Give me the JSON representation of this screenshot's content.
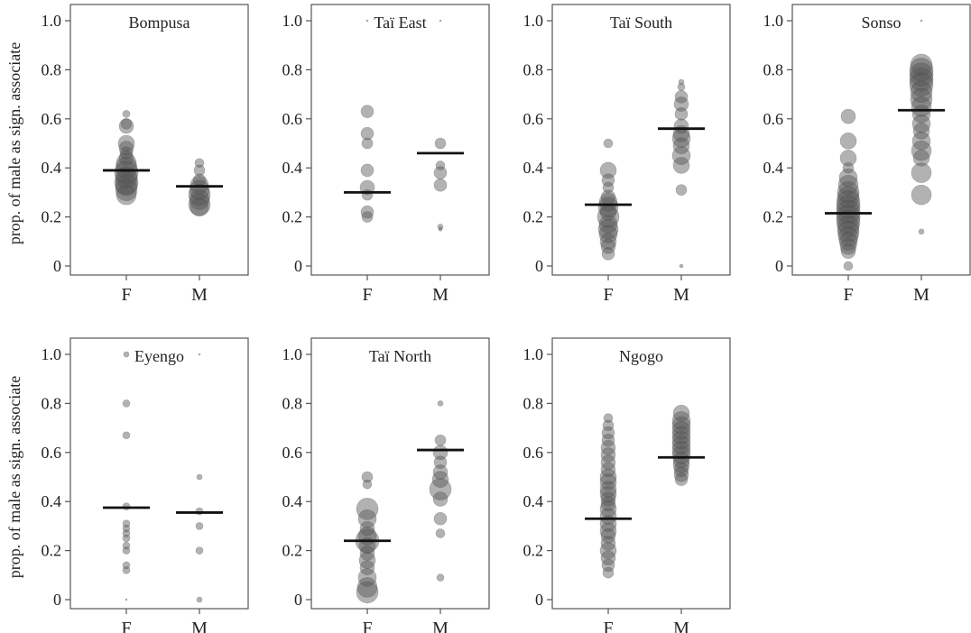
{
  "chart_data": {
    "type": "scatter",
    "ylabel": "prop. of male as sign. associate",
    "ylim": [
      0,
      1
    ],
    "yticks": [
      {
        "value": 0,
        "label": "0"
      },
      {
        "value": 0.2,
        "label": "0.2"
      },
      {
        "value": 0.4,
        "label": "0.4"
      },
      {
        "value": 0.6,
        "label": "0.6"
      },
      {
        "value": 0.8,
        "label": "0.8"
      },
      {
        "value": 1.0,
        "label": "1.0"
      }
    ],
    "categories": [
      "F",
      "M"
    ],
    "colors": {
      "point": "#555555",
      "median": "#111111",
      "frame": "#555555"
    },
    "panels": [
      {
        "title": "Bompusa",
        "median": {
          "F": 0.39,
          "M": 0.325
        },
        "points": {
          "F": [
            [
              0.62,
              4
            ],
            [
              0.58,
              6
            ],
            [
              0.57,
              8
            ],
            [
              0.5,
              9
            ],
            [
              0.48,
              8
            ],
            [
              0.46,
              7
            ],
            [
              0.44,
              8
            ],
            [
              0.42,
              11
            ],
            [
              0.4,
              12
            ],
            [
              0.38,
              13
            ],
            [
              0.36,
              12
            ],
            [
              0.34,
              13
            ],
            [
              0.33,
              12
            ],
            [
              0.31,
              12
            ],
            [
              0.29,
              11
            ]
          ],
          "M": [
            [
              0.42,
              5
            ],
            [
              0.39,
              6
            ],
            [
              0.35,
              7
            ],
            [
              0.33,
              10
            ],
            [
              0.31,
              11
            ],
            [
              0.29,
              12
            ],
            [
              0.27,
              11
            ],
            [
              0.25,
              12
            ],
            [
              0.24,
              10
            ]
          ]
        }
      },
      {
        "title": "Taï East",
        "median": {
          "F": 0.3,
          "M": 0.46
        },
        "points": {
          "F": [
            [
              1.0,
              1
            ],
            [
              0.63,
              7
            ],
            [
              0.54,
              7
            ],
            [
              0.5,
              6
            ],
            [
              0.39,
              7
            ],
            [
              0.32,
              8
            ],
            [
              0.29,
              6
            ],
            [
              0.22,
              7
            ],
            [
              0.2,
              6
            ]
          ],
          "M": [
            [
              1.0,
              1
            ],
            [
              0.5,
              6
            ],
            [
              0.41,
              5
            ],
            [
              0.38,
              7
            ],
            [
              0.33,
              7
            ],
            [
              0.16,
              3
            ],
            [
              0.15,
              2
            ]
          ]
        }
      },
      {
        "title": "Taï South",
        "median": {
          "F": 0.25,
          "M": 0.56
        },
        "points": {
          "F": [
            [
              0.5,
              5
            ],
            [
              0.39,
              9
            ],
            [
              0.35,
              7
            ],
            [
              0.32,
              6
            ],
            [
              0.28,
              8
            ],
            [
              0.26,
              10
            ],
            [
              0.24,
              11
            ],
            [
              0.22,
              9
            ],
            [
              0.2,
              12
            ],
            [
              0.17,
              10
            ],
            [
              0.15,
              11
            ],
            [
              0.13,
              10
            ],
            [
              0.1,
              9
            ],
            [
              0.08,
              8
            ],
            [
              0.05,
              7
            ]
          ],
          "M": [
            [
              0.75,
              3
            ],
            [
              0.73,
              4
            ],
            [
              0.69,
              7
            ],
            [
              0.66,
              8
            ],
            [
              0.62,
              7
            ],
            [
              0.57,
              8
            ],
            [
              0.54,
              9
            ],
            [
              0.52,
              10
            ],
            [
              0.49,
              9
            ],
            [
              0.45,
              10
            ],
            [
              0.41,
              9
            ],
            [
              0.31,
              6
            ],
            [
              0.0,
              2
            ]
          ]
        }
      },
      {
        "title": "Sonso",
        "median": {
          "F": 0.215,
          "M": 0.635
        },
        "points": {
          "F": [
            [
              0.61,
              8
            ],
            [
              0.51,
              9
            ],
            [
              0.44,
              9
            ],
            [
              0.4,
              6
            ],
            [
              0.36,
              10
            ],
            [
              0.33,
              11
            ],
            [
              0.3,
              12
            ],
            [
              0.28,
              12
            ],
            [
              0.26,
              13
            ],
            [
              0.24,
              13
            ],
            [
              0.22,
              13
            ],
            [
              0.2,
              13
            ],
            [
              0.18,
              13
            ],
            [
              0.16,
              12
            ],
            [
              0.14,
              12
            ],
            [
              0.12,
              11
            ],
            [
              0.1,
              10
            ],
            [
              0.08,
              9
            ],
            [
              0.06,
              8
            ],
            [
              0.0,
              5
            ]
          ],
          "M": [
            [
              1.0,
              1
            ],
            [
              0.82,
              12
            ],
            [
              0.8,
              13
            ],
            [
              0.78,
              13
            ],
            [
              0.76,
              13
            ],
            [
              0.74,
              13
            ],
            [
              0.71,
              12
            ],
            [
              0.68,
              12
            ],
            [
              0.65,
              11
            ],
            [
              0.62,
              10
            ],
            [
              0.58,
              10
            ],
            [
              0.55,
              9
            ],
            [
              0.51,
              10
            ],
            [
              0.47,
              11
            ],
            [
              0.44,
              9
            ],
            [
              0.38,
              11
            ],
            [
              0.29,
              11
            ],
            [
              0.14,
              3
            ]
          ]
        }
      },
      {
        "title": "Eyengo",
        "median": {
          "F": 0.375,
          "M": 0.355
        },
        "points": {
          "F": [
            [
              1.0,
              3
            ],
            [
              0.8,
              4
            ],
            [
              0.67,
              4
            ],
            [
              0.38,
              4
            ],
            [
              0.31,
              4
            ],
            [
              0.29,
              4
            ],
            [
              0.27,
              4
            ],
            [
              0.25,
              4
            ],
            [
              0.22,
              4
            ],
            [
              0.2,
              4
            ],
            [
              0.14,
              4
            ],
            [
              0.12,
              4
            ],
            [
              0.0,
              1
            ]
          ],
          "M": [
            [
              1.0,
              1
            ],
            [
              0.5,
              3
            ],
            [
              0.36,
              4
            ],
            [
              0.3,
              4
            ],
            [
              0.2,
              4
            ],
            [
              0.0,
              3
            ]
          ]
        }
      },
      {
        "title": "Taï North",
        "median": {
          "F": 0.24,
          "M": 0.61
        },
        "points": {
          "F": [
            [
              0.5,
              6
            ],
            [
              0.47,
              5
            ],
            [
              0.37,
              12
            ],
            [
              0.33,
              10
            ],
            [
              0.29,
              8
            ],
            [
              0.26,
              10
            ],
            [
              0.24,
              13
            ],
            [
              0.22,
              9
            ],
            [
              0.19,
              8
            ],
            [
              0.16,
              9
            ],
            [
              0.13,
              8
            ],
            [
              0.09,
              10
            ],
            [
              0.05,
              11
            ],
            [
              0.03,
              12
            ]
          ],
          "M": [
            [
              0.8,
              3
            ],
            [
              0.65,
              6
            ],
            [
              0.6,
              8
            ],
            [
              0.56,
              7
            ],
            [
              0.52,
              8
            ],
            [
              0.49,
              9
            ],
            [
              0.45,
              12
            ],
            [
              0.41,
              8
            ],
            [
              0.33,
              7
            ],
            [
              0.27,
              5
            ],
            [
              0.09,
              4
            ]
          ]
        }
      },
      {
        "title": "Ngogo",
        "median": {
          "F": 0.33,
          "M": 0.58
        },
        "points": {
          "F": [
            [
              0.74,
              5
            ],
            [
              0.71,
              6
            ],
            [
              0.68,
              7
            ],
            [
              0.65,
              7
            ],
            [
              0.62,
              8
            ],
            [
              0.59,
              8
            ],
            [
              0.56,
              8
            ],
            [
              0.53,
              8
            ],
            [
              0.5,
              9
            ],
            [
              0.48,
              9
            ],
            [
              0.45,
              9
            ],
            [
              0.43,
              9
            ],
            [
              0.41,
              8
            ],
            [
              0.39,
              8
            ],
            [
              0.37,
              9
            ],
            [
              0.34,
              9
            ],
            [
              0.31,
              9
            ],
            [
              0.28,
              9
            ],
            [
              0.26,
              8
            ],
            [
              0.23,
              8
            ],
            [
              0.2,
              9
            ],
            [
              0.17,
              8
            ],
            [
              0.14,
              7
            ],
            [
              0.11,
              6
            ]
          ],
          "M": [
            [
              0.76,
              9
            ],
            [
              0.73,
              10
            ],
            [
              0.71,
              10
            ],
            [
              0.69,
              10
            ],
            [
              0.67,
              10
            ],
            [
              0.65,
              10
            ],
            [
              0.63,
              10
            ],
            [
              0.61,
              10
            ],
            [
              0.59,
              10
            ],
            [
              0.57,
              9
            ],
            [
              0.55,
              9
            ],
            [
              0.53,
              8
            ],
            [
              0.51,
              8
            ],
            [
              0.49,
              7
            ]
          ]
        }
      }
    ]
  }
}
